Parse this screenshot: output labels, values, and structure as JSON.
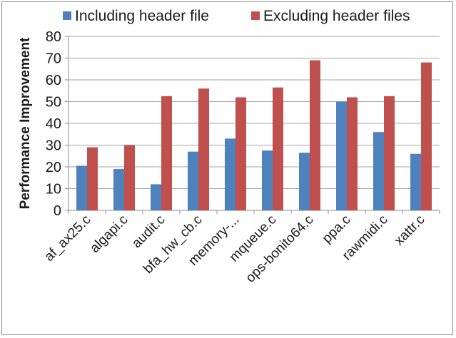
{
  "chart_data": {
    "type": "bar",
    "title": "",
    "xlabel": "",
    "ylabel": "Performance Improvement",
    "ylim": [
      0,
      80
    ],
    "yticks": [
      0,
      10,
      20,
      30,
      40,
      50,
      60,
      70,
      80
    ],
    "grid": true,
    "legend_position": "top",
    "categories": [
      "af_ax25.c",
      "algapi.c",
      "audit.c",
      "bfa_hw_cb.c",
      "memory-...",
      "mqueue.c",
      "ops-bonito64.c",
      "ppa.c",
      "rawmidi.c",
      "xattr.c"
    ],
    "series": [
      {
        "name": "Including header file",
        "color": "#4f81bd",
        "values": [
          20.5,
          19,
          12,
          27,
          33,
          27.5,
          26.5,
          50,
          36,
          26
        ]
      },
      {
        "name": "Excluding header files",
        "color": "#c0504d",
        "values": [
          29,
          30,
          52.5,
          56,
          52,
          56.5,
          69,
          52,
          52.5,
          68
        ]
      }
    ]
  }
}
